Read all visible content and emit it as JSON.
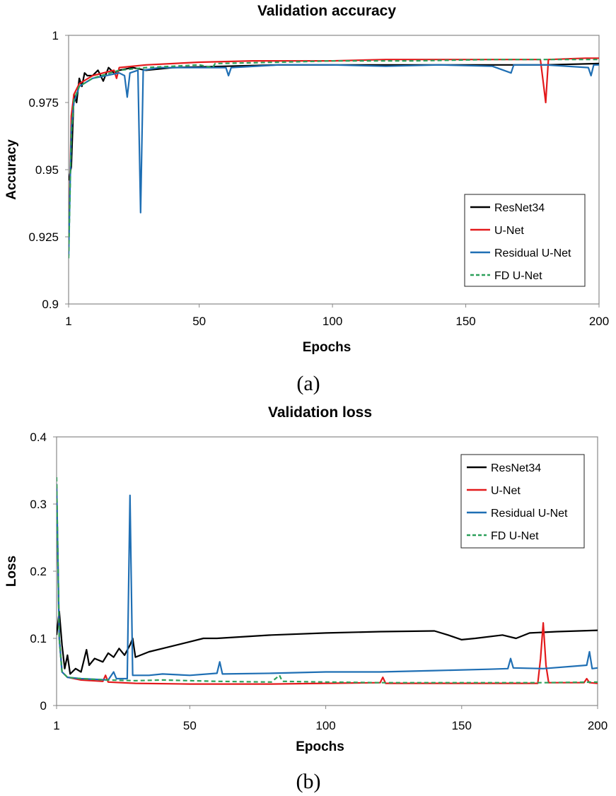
{
  "chart_data": [
    {
      "type": "line",
      "title": "Validation accuracy",
      "xlabel": "Epochs",
      "ylabel": "Accuracy",
      "caption": "(a)",
      "xlim": [
        1,
        200
      ],
      "ylim": [
        0.9,
        1.0
      ],
      "xticks": [
        1,
        50,
        100,
        150,
        200
      ],
      "yticks": [
        0.9,
        0.925,
        0.95,
        0.975,
        1
      ],
      "ytick_labels": [
        "0.9",
        "0.925",
        "0.95",
        "0.975",
        "1"
      ],
      "legend_position": "bottom-right",
      "series": [
        {
          "name": "ResNet34",
          "color": "#000000",
          "dash": "solid",
          "points": [
            [
              1,
              0.946
            ],
            [
              2,
              0.951
            ],
            [
              3,
              0.978
            ],
            [
              4,
              0.975
            ],
            [
              5,
              0.984
            ],
            [
              6,
              0.981
            ],
            [
              7,
              0.986
            ],
            [
              8,
              0.985
            ],
            [
              10,
              0.985
            ],
            [
              12,
              0.987
            ],
            [
              14,
              0.983
            ],
            [
              16,
              0.988
            ],
            [
              18,
              0.986
            ],
            [
              20,
              0.987
            ],
            [
              25,
              0.988
            ],
            [
              30,
              0.987
            ],
            [
              40,
              0.988
            ],
            [
              60,
              0.9885
            ],
            [
              80,
              0.989
            ],
            [
              100,
              0.989
            ],
            [
              120,
              0.989
            ],
            [
              140,
              0.989
            ],
            [
              160,
              0.989
            ],
            [
              180,
              0.989
            ],
            [
              200,
              0.9895
            ]
          ]
        },
        {
          "name": "U-Net",
          "color": "#e31a1c",
          "dash": "solid",
          "points": [
            [
              1,
              0.92
            ],
            [
              2,
              0.97
            ],
            [
              3,
              0.978
            ],
            [
              5,
              0.982
            ],
            [
              10,
              0.985
            ],
            [
              18,
              0.987
            ],
            [
              19,
              0.984
            ],
            [
              20,
              0.988
            ],
            [
              30,
              0.989
            ],
            [
              50,
              0.99
            ],
            [
              70,
              0.9905
            ],
            [
              100,
              0.9905
            ],
            [
              120,
              0.991
            ],
            [
              150,
              0.991
            ],
            [
              178,
              0.991
            ],
            [
              179,
              0.983
            ],
            [
              180,
              0.975
            ],
            [
              181,
              0.991
            ],
            [
              195,
              0.9915
            ],
            [
              200,
              0.9915
            ]
          ]
        },
        {
          "name": "Residual U-Net",
          "color": "#1f6fb4",
          "dash": "solid",
          "points": [
            [
              1,
              0.918
            ],
            [
              2,
              0.965
            ],
            [
              3,
              0.975
            ],
            [
              5,
              0.981
            ],
            [
              10,
              0.984
            ],
            [
              20,
              0.986
            ],
            [
              22,
              0.985
            ],
            [
              23,
              0.977
            ],
            [
              24,
              0.986
            ],
            [
              27,
              0.987
            ],
            [
              28,
              0.934
            ],
            [
              29,
              0.987
            ],
            [
              35,
              0.988
            ],
            [
              45,
              0.988
            ],
            [
              60,
              0.988
            ],
            [
              61,
              0.985
            ],
            [
              62,
              0.988
            ],
            [
              80,
              0.989
            ],
            [
              100,
              0.989
            ],
            [
              120,
              0.9885
            ],
            [
              140,
              0.989
            ],
            [
              160,
              0.9885
            ],
            [
              167,
              0.986
            ],
            [
              168,
              0.989
            ],
            [
              180,
              0.989
            ],
            [
              196,
              0.988
            ],
            [
              197,
              0.985
            ],
            [
              198,
              0.989
            ],
            [
              200,
              0.989
            ]
          ]
        },
        {
          "name": "FD U-Net",
          "color": "#2ca05a",
          "dash": "dashed",
          "points": [
            [
              1,
              0.917
            ],
            [
              2,
              0.963
            ],
            [
              3,
              0.976
            ],
            [
              5,
              0.981
            ],
            [
              10,
              0.984
            ],
            [
              20,
              0.987
            ],
            [
              30,
              0.988
            ],
            [
              50,
              0.989
            ],
            [
              55,
              0.988
            ],
            [
              56,
              0.9895
            ],
            [
              80,
              0.99
            ],
            [
              100,
              0.9905
            ],
            [
              130,
              0.9905
            ],
            [
              160,
              0.991
            ],
            [
              180,
              0.991
            ],
            [
              200,
              0.991
            ]
          ]
        }
      ]
    },
    {
      "type": "line",
      "title": "Validation loss",
      "xlabel": "Epochs",
      "ylabel": "Loss",
      "caption": "(b)",
      "xlim": [
        1,
        200
      ],
      "ylim": [
        0,
        0.4
      ],
      "xticks": [
        1,
        50,
        100,
        150,
        200
      ],
      "yticks": [
        0,
        0.1,
        0.2,
        0.3,
        0.4
      ],
      "ytick_labels": [
        "0",
        "0.1",
        "0.2",
        "0.3",
        "0.4"
      ],
      "legend_position": "top-right",
      "series": [
        {
          "name": "ResNet34",
          "color": "#000000",
          "dash": "solid",
          "points": [
            [
              1,
              0.105
            ],
            [
              2,
              0.14
            ],
            [
              3,
              0.09
            ],
            [
              4,
              0.055
            ],
            [
              5,
              0.075
            ],
            [
              6,
              0.047
            ],
            [
              8,
              0.055
            ],
            [
              10,
              0.05
            ],
            [
              12,
              0.083
            ],
            [
              13,
              0.06
            ],
            [
              15,
              0.07
            ],
            [
              18,
              0.065
            ],
            [
              20,
              0.078
            ],
            [
              22,
              0.072
            ],
            [
              24,
              0.085
            ],
            [
              26,
              0.075
            ],
            [
              28,
              0.09
            ],
            [
              29,
              0.1
            ],
            [
              30,
              0.072
            ],
            [
              35,
              0.08
            ],
            [
              40,
              0.085
            ],
            [
              50,
              0.095
            ],
            [
              55,
              0.1
            ],
            [
              60,
              0.1
            ],
            [
              80,
              0.105
            ],
            [
              100,
              0.108
            ],
            [
              120,
              0.11
            ],
            [
              140,
              0.111
            ],
            [
              145,
              0.105
            ],
            [
              150,
              0.098
            ],
            [
              155,
              0.1
            ],
            [
              165,
              0.105
            ],
            [
              170,
              0.1
            ],
            [
              175,
              0.108
            ],
            [
              185,
              0.11
            ],
            [
              200,
              0.112
            ]
          ]
        },
        {
          "name": "U-Net",
          "color": "#e31a1c",
          "dash": "solid",
          "points": [
            [
              1,
              0.33
            ],
            [
              2,
              0.1
            ],
            [
              3,
              0.05
            ],
            [
              5,
              0.042
            ],
            [
              10,
              0.038
            ],
            [
              18,
              0.036
            ],
            [
              19,
              0.045
            ],
            [
              20,
              0.035
            ],
            [
              30,
              0.033
            ],
            [
              50,
              0.032
            ],
            [
              80,
              0.032
            ],
            [
              100,
              0.033
            ],
            [
              120,
              0.034
            ],
            [
              121,
              0.042
            ],
            [
              122,
              0.033
            ],
            [
              150,
              0.033
            ],
            [
              178,
              0.033
            ],
            [
              179,
              0.07
            ],
            [
              180,
              0.123
            ],
            [
              181,
              0.06
            ],
            [
              182,
              0.034
            ],
            [
              195,
              0.034
            ],
            [
              196,
              0.04
            ],
            [
              197,
              0.034
            ],
            [
              200,
              0.033
            ]
          ]
        },
        {
          "name": "Residual U-Net",
          "color": "#1f6fb4",
          "dash": "solid",
          "points": [
            [
              1,
              0.33
            ],
            [
              2,
              0.1
            ],
            [
              3,
              0.05
            ],
            [
              5,
              0.042
            ],
            [
              10,
              0.04
            ],
            [
              20,
              0.038
            ],
            [
              22,
              0.05
            ],
            [
              23,
              0.04
            ],
            [
              27,
              0.04
            ],
            [
              28,
              0.313
            ],
            [
              29,
              0.045
            ],
            [
              35,
              0.045
            ],
            [
              40,
              0.047
            ],
            [
              50,
              0.045
            ],
            [
              60,
              0.048
            ],
            [
              61,
              0.065
            ],
            [
              62,
              0.047
            ],
            [
              80,
              0.048
            ],
            [
              100,
              0.05
            ],
            [
              120,
              0.05
            ],
            [
              140,
              0.052
            ],
            [
              160,
              0.054
            ],
            [
              167,
              0.055
            ],
            [
              168,
              0.07
            ],
            [
              169,
              0.056
            ],
            [
              180,
              0.055
            ],
            [
              196,
              0.06
            ],
            [
              197,
              0.08
            ],
            [
              198,
              0.055
            ],
            [
              200,
              0.056
            ]
          ]
        },
        {
          "name": "FD U-Net",
          "color": "#2ca05a",
          "dash": "dashed",
          "points": [
            [
              1,
              0.34
            ],
            [
              2,
              0.1
            ],
            [
              3,
              0.05
            ],
            [
              5,
              0.042
            ],
            [
              10,
              0.04
            ],
            [
              20,
              0.038
            ],
            [
              30,
              0.037
            ],
            [
              40,
              0.038
            ],
            [
              50,
              0.037
            ],
            [
              60,
              0.036
            ],
            [
              80,
              0.035
            ],
            [
              83,
              0.045
            ],
            [
              84,
              0.036
            ],
            [
              100,
              0.035
            ],
            [
              120,
              0.034
            ],
            [
              150,
              0.034
            ],
            [
              180,
              0.034
            ],
            [
              200,
              0.035
            ]
          ]
        }
      ]
    }
  ]
}
